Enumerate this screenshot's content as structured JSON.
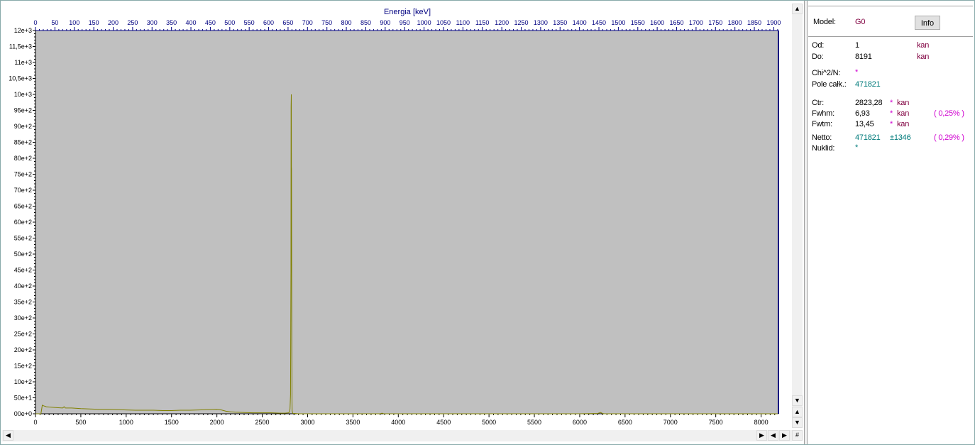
{
  "chart_data": {
    "type": "line",
    "title": "Energia [keV]",
    "top_axis": {
      "label": "Energia [keV]",
      "ticks": [
        0,
        50,
        100,
        150,
        200,
        250,
        300,
        350,
        400,
        450,
        500,
        550,
        600,
        650,
        700,
        750,
        800,
        850,
        900,
        950,
        1000,
        1050,
        1100,
        1150,
        1200,
        1250,
        1300,
        1350,
        1400,
        1450,
        1500,
        1550,
        1600,
        1650,
        1700,
        1750,
        1800,
        1850,
        1900
      ],
      "range": [
        0,
        1912
      ]
    },
    "x_axis": {
      "label": "",
      "ticks": [
        0,
        500,
        1000,
        1500,
        2000,
        2500,
        3000,
        3500,
        4000,
        4500,
        5000,
        5500,
        6000,
        6500,
        7000,
        7500,
        8000
      ],
      "range": [
        0,
        8191
      ]
    },
    "y_axis": {
      "label": "",
      "ticks": [
        0,
        50,
        100,
        150,
        200,
        250,
        300,
        350,
        400,
        450,
        500,
        550,
        600,
        650,
        700,
        750,
        800,
        850,
        900,
        950,
        1000,
        1050,
        1100,
        1150,
        1200
      ],
      "tick_labels": [
        "00e+0",
        "50e+1",
        "10e+2",
        "15e+2",
        "20e+2",
        "25e+2",
        "30e+2",
        "35e+2",
        "40e+2",
        "45e+2",
        "50e+2",
        "55e+2",
        "60e+2",
        "65e+2",
        "70e+2",
        "75e+2",
        "80e+2",
        "85e+2",
        "90e+2",
        "95e+2",
        "10e+3",
        "10,5e+3",
        "11e+3",
        "11,5e+3",
        "12e+3"
      ],
      "range": [
        0,
        1200
      ]
    },
    "grid": false,
    "colors": {
      "plot_background": "#c0c0c0",
      "series": "#808000",
      "axis_text": "#000000",
      "top_axis_text": "#000080"
    },
    "series": [
      {
        "x": [
          0,
          60,
          75,
          90,
          120,
          200,
          250,
          300,
          315,
          330,
          400,
          500,
          600,
          700,
          800,
          900,
          1000,
          1100,
          1200,
          1300,
          1400,
          1500,
          1600,
          1700,
          1800,
          1900,
          2000,
          2050,
          2100,
          2150,
          2200,
          2300,
          2400,
          2500,
          2600,
          2700,
          2750,
          2790,
          2800,
          2806,
          2812,
          2816,
          2818,
          2820,
          2822,
          2823,
          2824,
          2826,
          2828,
          2830,
          2834,
          2840,
          2860,
          2900,
          3000,
          3500,
          3800,
          3820,
          3840,
          4000,
          5000,
          6000,
          6200,
          6230,
          6250,
          6270,
          6300,
          7000,
          8191
        ],
        "y": [
          0,
          0,
          27,
          25,
          22,
          20,
          19,
          18,
          22,
          18,
          18,
          16,
          15,
          14,
          14,
          13,
          12,
          11,
          11,
          11,
          10,
          10,
          11,
          11,
          12,
          13,
          14,
          12,
          8,
          6,
          5,
          4,
          3,
          3,
          3,
          2,
          2,
          3,
          5,
          15,
          60,
          450,
          960,
          1000,
          740,
          770,
          500,
          200,
          40,
          10,
          3,
          1,
          1,
          0,
          0,
          0,
          0,
          2,
          0,
          0,
          0,
          0,
          1,
          4,
          1,
          0,
          0,
          0,
          0
        ]
      }
    ]
  },
  "panel": {
    "model_label": "Model:",
    "model_value": "G0",
    "info_button": "Info",
    "od_label": "Od:",
    "od_value": "1",
    "od_unit": "kan",
    "do_label": "Do:",
    "do_value": "8191",
    "do_unit": "kan",
    "chi_label": "Chi^2/N:",
    "chi_value": "*",
    "pole_label": "Pole całk.:",
    "pole_value": "471821",
    "ctr_label": "Ctr:",
    "ctr_value": "2823,28",
    "ctr_err": "*",
    "ctr_unit": "kan",
    "fwhm_label": "Fwhm:",
    "fwhm_value": "6,93",
    "fwhm_err": "*",
    "fwhm_unit": "kan",
    "fwhm_pct": "( 0,25% )",
    "fwtm_label": "Fwtm:",
    "fwtm_value": "13,45",
    "fwtm_err": "*",
    "fwtm_unit": "kan",
    "netto_label": "Netto:",
    "netto_value": "471821",
    "netto_err": "±1346",
    "netto_pct": "( 0,29% )",
    "nuklid_label": "Nuklid:",
    "nuklid_value": "*"
  },
  "scroll": {
    "up": "▲",
    "down": "▼",
    "left": "◀",
    "right": "▶",
    "hash": "#"
  }
}
